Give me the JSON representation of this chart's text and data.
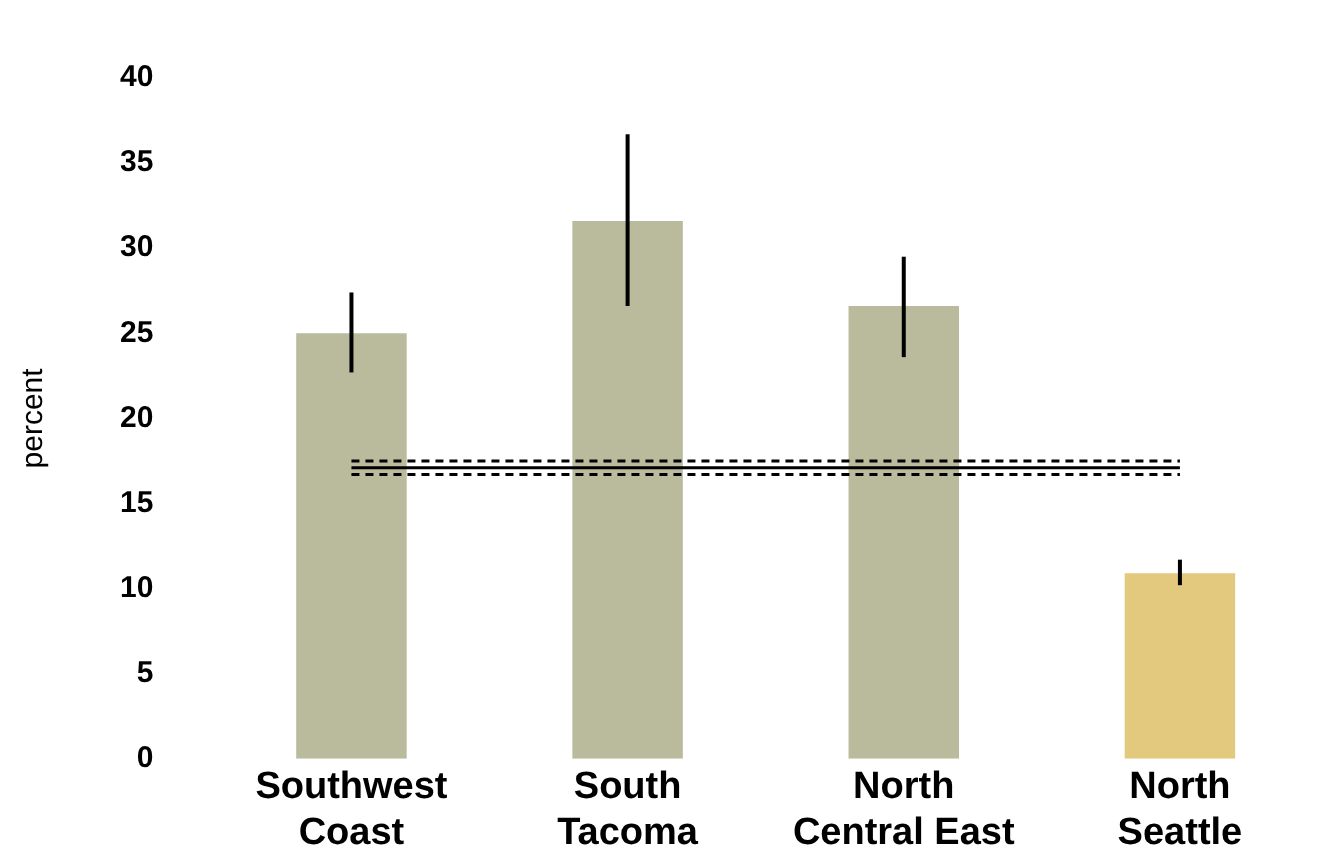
{
  "chart_data": {
    "type": "bar",
    "ylabel": "percent",
    "categories": [
      "Southwest\nCoast",
      "South\nTacoma",
      "North\nCentral East",
      "North\nSeattle"
    ],
    "values": [
      25,
      31.6,
      26.6,
      10.9
    ],
    "colors": [
      "#babb9c",
      "#babb9c",
      "#babb9c",
      "#e3c97d"
    ],
    "errors": [
      [
        22.7,
        27.4
      ],
      [
        26.6,
        36.7
      ],
      [
        23.6,
        29.5
      ],
      [
        10.2,
        11.7
      ]
    ],
    "ylim": [
      0,
      40
    ],
    "yticks": [
      0,
      5,
      10,
      15,
      20,
      25,
      30,
      35,
      40
    ],
    "grid": false,
    "legend": false,
    "ref_lines": [
      {
        "axis": "y",
        "value": 17.1,
        "color": "#000000",
        "line_style": "solid"
      },
      {
        "axis": "y",
        "value": 17.5,
        "color": "#000000",
        "line_style": "dashed"
      },
      {
        "axis": "y",
        "value": 16.7,
        "color": "#000000",
        "line_style": "dashed"
      }
    ]
  }
}
